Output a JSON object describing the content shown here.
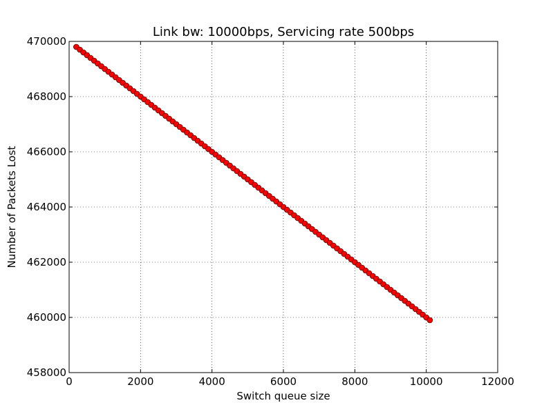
{
  "chart_data": {
    "type": "line",
    "title": "Link bw: 10000bps, Servicing rate 500bps",
    "xlabel": "Switch queue size",
    "ylabel": "Number of Packets Lost",
    "xlim": [
      0,
      12000
    ],
    "ylim": [
      458000,
      470000
    ],
    "xticks": [
      0,
      2000,
      4000,
      6000,
      8000,
      10000,
      12000
    ],
    "yticks": [
      458000,
      460000,
      462000,
      464000,
      466000,
      468000,
      470000
    ],
    "grid": true,
    "series": [
      {
        "x_start": 200,
        "x_end": 10100,
        "x_step": 100,
        "y_at_x_start": 469800,
        "y_at_x_end": 459900,
        "marker": "circle",
        "color": "#ff0000",
        "line_color": "#000000"
      }
    ]
  }
}
